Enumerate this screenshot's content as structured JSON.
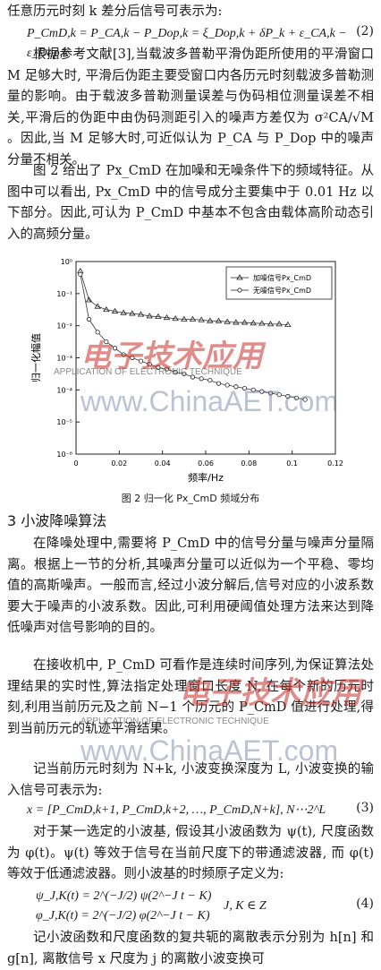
{
  "text": {
    "p0": "任意历元时刻 k 差分后信号可表示为:",
    "eq2": "P_CmD,k = P_CA,k − P_Dop,k = ξ_Dop,k + δP_k + ε_CA,k − ε_Dop,k",
    "eq2_num": "(2)",
    "p1": "根据参考文献[3],当载波多普勒平滑伪距所使用的平滑窗口 M 足够大时, 平滑后伪距主要受窗口内各历元时刻载波多普勒测量的影响。由于载波多普勒测量误差与伪码相位测量误差不相关,平滑后的伪距中由伪码测距引入的噪声方差仅为 σ²CA/√M 。因此,当 M 足够大时,可近似认为 P_CA 与 P_Dop 中的噪声分量不相关。",
    "p2": "图 2 给出了 Px_CmD 在加噪和无噪条件下的频域特征。从图中可以看出, Px_CmD 中的信号成分主要集中于 0.01 Hz 以下部分。因此,可认为 P_CmD 中基本不包含由载体高阶动态引入的高频分量。",
    "fig_caption": "图 2  归一化 Px_CmD 频域分布",
    "h3": "3 小波降噪算法",
    "p3": "在降噪处理中,需要将 P_CmD 中的信号分量与噪声分量隔离。根据上一节的分析,其噪声分量可以近似为一个平稳、零均值的高斯噪声。一般而言,经过小波分解后,信号对应的小波系数要大于噪声的小波系数。因此,可利用硬阈值处理方法来达到降低噪声对信号影响的目的。",
    "p4": "在接收机中, P_CmD 可看作是连续时间序列,为保证算法处理结果的实时性,算法指定处理窗口长度 N, 在每个新的历元时刻,利用当前历元及之前 N−1 个历元的 P_CmD 值进行处理,得到当前历元的轨迹平滑结果。",
    "p5": "记当前历元时刻为 N+k, 小波变换深度为 L, 小波变换的输入信号可表示为:",
    "eq3": "x = [P_CmD,k+1, P_CmD,k+2, …, P_CmD,N+k],  N⋯2^L",
    "eq3_num": "(3)",
    "p6": "对于某一选定的小波基, 假设其小波函数为 ψ(t), 尺度函数为 φ(t)。ψ(t) 等效于信号在当前尺度下的带通滤波器, 而 φ(t) 等效于低通滤波器。则小波基的时频原子定义为:",
    "eq4a": "ψ_J,K(t) = 2^(−J/2) ψ(2^−J t − K)",
    "eq4b": "φ_J,K(t) = 2^(−J/2) φ(2^−J t − K)",
    "eq4_cond": "J, K ∈ Z",
    "eq4_num": "(4)",
    "p7": "记小波函数和尺度函数的复共轭的离散表示分别为 h[n] 和 g[n], 离散信号 x 尺度为 j 的离散小波变换可"
  },
  "watermarks": {
    "logo_text": "电子技术应用",
    "en_text": "APPLICATION OF ELECTRONIC TECHNIQUE",
    "url": "www.ChinaAET.com"
  },
  "colors": {
    "accent": "#c9302a",
    "ink": "#1a1a1a"
  },
  "chart_data": {
    "type": "scatter",
    "xlabel": "频率/Hz",
    "ylabel": "归一化幅值",
    "xlim": [
      0,
      0.12
    ],
    "ylim": [
      -6,
      0
    ],
    "log_y": true,
    "x_ticks": [
      "0",
      "0.02",
      "0.04",
      "0.06",
      "0.08",
      "0.1",
      "0.12"
    ],
    "y_ticks": [
      "10⁰",
      "10⁻¹",
      "10⁻²",
      "10⁻³",
      "10⁻⁴",
      "10⁻⁵",
      "10⁻⁶"
    ],
    "legend_position": "top-right",
    "series": [
      {
        "name": "加噪信号Px_CmD",
        "marker": "triangle",
        "x": [
          0.002,
          0.006,
          0.01,
          0.014,
          0.018,
          0.022,
          0.026,
          0.03,
          0.034,
          0.038,
          0.042,
          0.046,
          0.05,
          0.054,
          0.058,
          0.062,
          0.066,
          0.07,
          0.074,
          0.078,
          0.082,
          0.086,
          0.09,
          0.094,
          0.098
        ],
        "y": [
          -0.3,
          -1.2,
          -1.4,
          -1.5,
          -1.55,
          -1.6,
          -1.62,
          -1.65,
          -1.7,
          -1.72,
          -1.75,
          -1.78,
          -1.8,
          -1.8,
          -1.82,
          -1.85,
          -1.85,
          -1.88,
          -1.9,
          -1.9,
          -1.92,
          -1.93,
          -1.95,
          -1.95,
          -1.97
        ]
      },
      {
        "name": "无噪信号Px_CmD",
        "marker": "circle",
        "x": [
          0.002,
          0.006,
          0.01,
          0.014,
          0.018,
          0.022,
          0.026,
          0.03,
          0.034,
          0.038,
          0.042,
          0.046,
          0.05,
          0.054,
          0.058,
          0.062,
          0.066,
          0.07,
          0.074,
          0.078,
          0.082,
          0.086,
          0.09,
          0.094,
          0.098,
          0.102,
          0.106
        ],
        "y": [
          -0.4,
          -1.8,
          -2.2,
          -2.5,
          -2.7,
          -2.9,
          -3.0,
          -3.1,
          -3.2,
          -3.3,
          -3.35,
          -3.45,
          -3.5,
          -3.6,
          -3.65,
          -3.7,
          -3.8,
          -3.85,
          -3.9,
          -3.95,
          -4.0,
          -4.05,
          -4.1,
          -4.15,
          -4.2,
          -4.25,
          -4.3
        ]
      }
    ]
  }
}
